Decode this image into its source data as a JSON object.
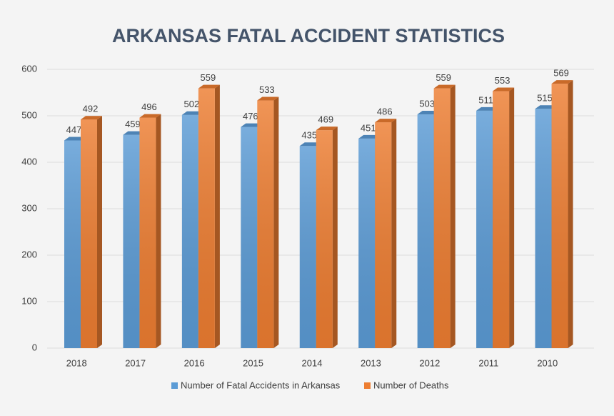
{
  "chart_data": {
    "type": "bar",
    "title": "ARKANSAS FATAL ACCIDENT STATISTICS",
    "categories": [
      "2018",
      "2017",
      "2016",
      "2015",
      "2014",
      "2013",
      "2012",
      "2011",
      "2010"
    ],
    "series": [
      {
        "name": "Number of Fatal Accidents in Arkansas",
        "color": "#5b9bd5",
        "values": [
          447,
          459,
          502,
          476,
          435,
          451,
          503,
          511,
          515
        ]
      },
      {
        "name": "Number of Deaths",
        "color": "#ed7d31",
        "values": [
          492,
          496,
          559,
          533,
          469,
          486,
          559,
          553,
          569
        ]
      }
    ],
    "ylim": [
      0,
      600
    ],
    "yticks": [
      0,
      100,
      200,
      300,
      400,
      500,
      600
    ],
    "grid": true
  }
}
